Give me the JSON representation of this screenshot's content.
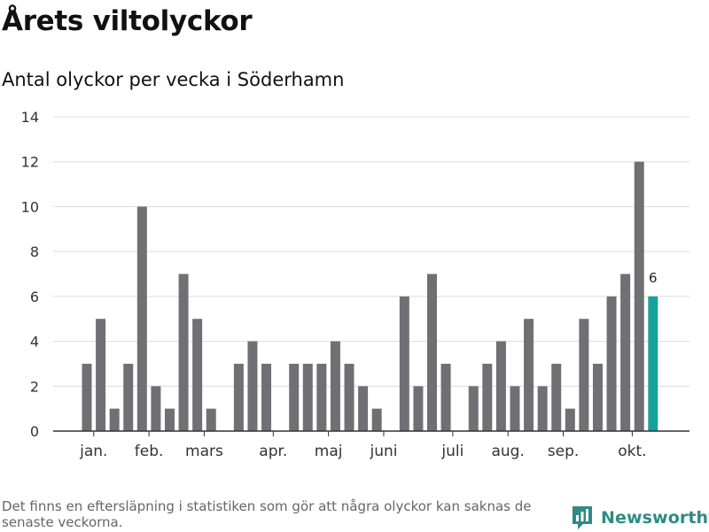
{
  "title": "Årets viltolyckor",
  "subtitle": "Antal olyckor per vecka i Söderhamn",
  "footnote": "Det finns en eftersläpning i statistiken som gör att några olyckor kan saknas de senaste veckorna.",
  "brand": {
    "name": "Newsworthy",
    "icon": "newsworthy-logo-icon"
  },
  "colors": {
    "bar": "#707074",
    "highlight": "#17a199",
    "grid": "#dcdcdc",
    "axis": "#333333"
  },
  "chart_data": {
    "type": "bar",
    "xlabel": "",
    "ylabel": "",
    "ylim": [
      0,
      14
    ],
    "yticks": [
      0,
      2,
      4,
      6,
      8,
      10,
      12,
      14
    ],
    "grid": true,
    "x": [
      2,
      3,
      4,
      5,
      6,
      7,
      8,
      9,
      10,
      11,
      12,
      13,
      14,
      15,
      16,
      17,
      18,
      19,
      20,
      21,
      22,
      23,
      24,
      25,
      26,
      27,
      28,
      29,
      30,
      31,
      32,
      33,
      34,
      35,
      36,
      37,
      38,
      39,
      40,
      41,
      42,
      43
    ],
    "values": [
      3,
      5,
      1,
      3,
      10,
      2,
      1,
      7,
      5,
      1,
      null,
      3,
      4,
      3,
      null,
      3,
      3,
      3,
      4,
      3,
      2,
      1,
      null,
      6,
      2,
      7,
      3,
      null,
      2,
      3,
      4,
      2,
      5,
      2,
      3,
      1,
      5,
      3,
      6,
      7,
      12,
      6
    ],
    "highlight_last": true,
    "last_value_label": "6",
    "month_ticks": [
      {
        "label": "jan.",
        "x": 2.5
      },
      {
        "label": "feb.",
        "x": 6.5
      },
      {
        "label": "mars",
        "x": 10.5
      },
      {
        "label": "apr.",
        "x": 15.5
      },
      {
        "label": "maj",
        "x": 19.5
      },
      {
        "label": "juni",
        "x": 23.5
      },
      {
        "label": "juli",
        "x": 28.5
      },
      {
        "label": "aug.",
        "x": 32.5
      },
      {
        "label": "sep.",
        "x": 36.5
      },
      {
        "label": "okt.",
        "x": 41.5
      }
    ]
  }
}
